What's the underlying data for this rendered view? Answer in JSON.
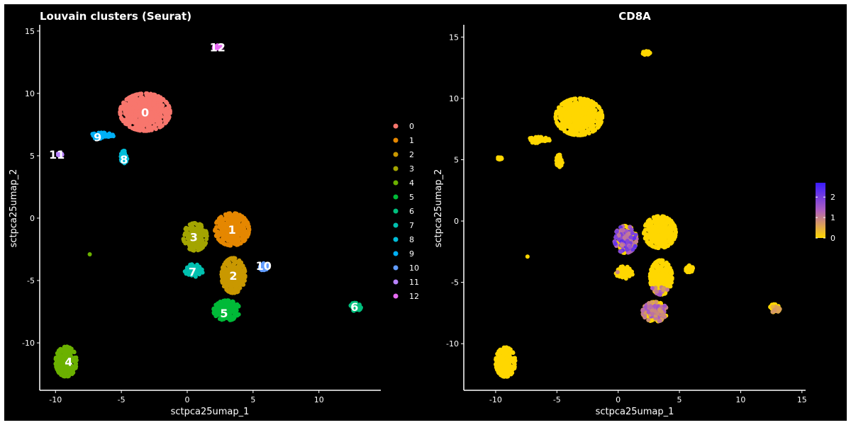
{
  "chart_data": [
    {
      "type": "scatter",
      "title": "Louvain clusters (Seurat)",
      "xlabel": "sctpca25umap_1",
      "ylabel": "sctpca25umap_2",
      "xlim": [
        -11.2,
        14.7
      ],
      "ylim": [
        -13.8,
        15.5
      ],
      "xticks": [
        -10,
        -5,
        0,
        5,
        10
      ],
      "yticks": [
        -10,
        -5,
        0,
        5,
        10,
        15
      ],
      "grid": false,
      "legend": "right",
      "legend_entries": [
        "0",
        "1",
        "2",
        "3",
        "4",
        "5",
        "6",
        "7",
        "8",
        "9",
        "10",
        "11",
        "12"
      ],
      "clusters": [
        {
          "label": "0",
          "color": "#F8766D",
          "center": [
            -3.2,
            8.5
          ],
          "spread": [
            1.9,
            1.5
          ]
        },
        {
          "label": "1",
          "color": "#E58700",
          "center": [
            3.4,
            -0.9
          ],
          "spread": [
            1.3,
            1.3
          ]
        },
        {
          "label": "2",
          "color": "#C99800",
          "center": [
            3.5,
            -4.6
          ],
          "spread": [
            0.9,
            1.4
          ]
        },
        {
          "label": "3",
          "color": "#A3A500",
          "center": [
            0.6,
            -1.5
          ],
          "spread": [
            0.9,
            1.1
          ]
        },
        {
          "label": "4",
          "color": "#6BB100",
          "center": [
            -9.2,
            -11.5
          ],
          "spread": [
            0.8,
            1.2
          ]
        },
        {
          "label": "5",
          "color": "#00BA38",
          "center": [
            3.0,
            -7.4
          ],
          "spread": [
            1.0,
            0.8
          ]
        },
        {
          "label": "6",
          "color": "#00BF7D",
          "center": [
            12.8,
            -7.1
          ],
          "spread": [
            0.4,
            0.35
          ]
        },
        {
          "label": "7",
          "color": "#00C0AF",
          "center": [
            0.5,
            -4.2
          ],
          "spread": [
            0.7,
            0.5
          ]
        },
        {
          "label": "8",
          "color": "#00BCD8",
          "center": [
            -4.8,
            4.9
          ],
          "spread": [
            0.25,
            0.5
          ]
        },
        {
          "label": "9",
          "color": "#00B0F6",
          "center": [
            -6.5,
            6.6
          ],
          "spread": [
            0.9,
            0.25
          ]
        },
        {
          "label": "10",
          "color": "#619CFF",
          "center": [
            5.8,
            -3.9
          ],
          "spread": [
            0.3,
            0.3
          ]
        },
        {
          "label": "11",
          "color": "#B983FF",
          "center": [
            -9.7,
            5.1
          ],
          "spread": [
            0.2,
            0.1
          ]
        },
        {
          "label": "12",
          "color": "#E76BF3",
          "center": [
            2.3,
            13.7
          ],
          "spread": [
            0.3,
            0.15
          ]
        }
      ],
      "centroid_labels": [
        {
          "label": "0",
          "x": -3.2,
          "y": 8.5
        },
        {
          "label": "1",
          "x": 3.4,
          "y": -0.9
        },
        {
          "label": "2",
          "x": 3.5,
          "y": -4.6
        },
        {
          "label": "3",
          "x": 0.5,
          "y": -1.5
        },
        {
          "label": "4",
          "x": -9.0,
          "y": -11.5
        },
        {
          "label": "5",
          "x": 2.8,
          "y": -7.6
        },
        {
          "label": "6",
          "x": 12.7,
          "y": -7.1
        },
        {
          "label": "7",
          "x": 0.4,
          "y": -4.3
        },
        {
          "label": "8",
          "x": -4.8,
          "y": 4.7
        },
        {
          "label": "9",
          "x": -6.8,
          "y": 6.5
        },
        {
          "label": "10",
          "x": 5.8,
          "y": -3.8
        },
        {
          "label": "11",
          "x": -9.9,
          "y": 5.1
        },
        {
          "label": "12",
          "x": 2.3,
          "y": 13.7
        }
      ],
      "outliers": [
        {
          "label": "4",
          "x": -7.4,
          "y": -2.9
        }
      ]
    },
    {
      "type": "scatter",
      "title": "CD8A",
      "xlabel": "sctpca25umap_1",
      "ylabel": "sctpca25umap_2",
      "xlim": [
        -12.6,
        15.3
      ],
      "ylim": [
        -13.8,
        16.0
      ],
      "xticks": [
        -10,
        -5,
        0,
        5,
        10,
        15
      ],
      "yticks": [
        -10,
        -5,
        0,
        5,
        10,
        15
      ],
      "grid": false,
      "legend": "right",
      "colorbar": {
        "ticks": [
          0,
          1,
          2
        ],
        "range": [
          0,
          2.7
        ],
        "low_color": "#FFD700",
        "mid_color": "#B060C0",
        "high_color": "#3A1BFF"
      },
      "base_color": "#FFD700",
      "expression_regions": [
        {
          "x_range": [
            -0.6,
            2.2
          ],
          "y_range": [
            -3.0,
            0.5
          ],
          "level": 1.8
        },
        {
          "x_range": [
            1.6,
            4.6
          ],
          "y_range": [
            -8.6,
            -5.4
          ],
          "level": 1.2
        },
        {
          "x_range": [
            -0.8,
            0.0
          ],
          "y_range": [
            -4.2,
            -3.6
          ],
          "level": 0.8
        },
        {
          "x_range": [
            12.6,
            13.4
          ],
          "y_range": [
            -7.6,
            -6.9
          ],
          "level": 0.6
        }
      ]
    }
  ]
}
